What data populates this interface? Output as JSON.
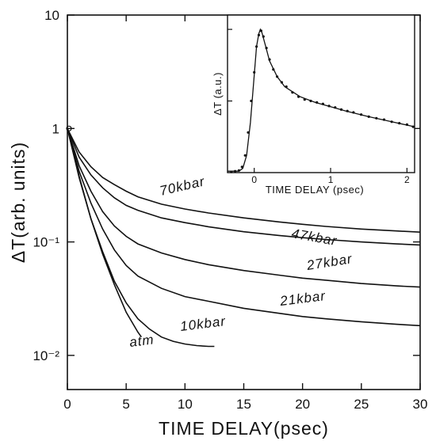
{
  "chart_data": [
    {
      "type": "line",
      "xlabel": "TIME DELAY(psec)",
      "ylabel": "ΔT(arb. units)",
      "xlim": [
        0,
        30
      ],
      "ylim": [
        0.005,
        10
      ],
      "yscale": "log",
      "x_ticks": [
        "0",
        "5",
        "10",
        "15",
        "20",
        "25",
        "30"
      ],
      "y_ticks": [
        {
          "value": 10,
          "label": "10"
        },
        {
          "value": 1,
          "label": "1"
        },
        {
          "value": 0.1,
          "label": "10⁻¹"
        },
        {
          "value": 0.01,
          "label": "10⁻²"
        }
      ],
      "grid": false,
      "series": [
        {
          "name": "70kbar",
          "x": [
            0,
            1,
            2,
            3,
            4,
            5,
            6,
            8,
            10,
            12,
            15,
            18,
            20,
            22,
            25,
            28,
            30
          ],
          "y": [
            1,
            0.62,
            0.46,
            0.37,
            0.32,
            0.28,
            0.25,
            0.215,
            0.195,
            0.18,
            0.163,
            0.15,
            0.143,
            0.137,
            0.13,
            0.125,
            0.122
          ]
        },
        {
          "name": "47kbar",
          "x": [
            0,
            1,
            2,
            3,
            4,
            5,
            6,
            8,
            10,
            12,
            15,
            18,
            20,
            22,
            25,
            28,
            30
          ],
          "y": [
            1,
            0.56,
            0.39,
            0.3,
            0.245,
            0.21,
            0.19,
            0.163,
            0.148,
            0.136,
            0.123,
            0.114,
            0.109,
            0.105,
            0.1,
            0.096,
            0.094
          ]
        },
        {
          "name": "27kbar",
          "x": [
            0,
            1,
            2,
            3,
            4,
            5,
            6,
            8,
            10,
            12,
            15,
            18,
            20,
            22,
            25,
            28,
            30
          ],
          "y": [
            1,
            0.47,
            0.28,
            0.185,
            0.138,
            0.112,
            0.096,
            0.08,
            0.07,
            0.063,
            0.056,
            0.051,
            0.048,
            0.046,
            0.043,
            0.041,
            0.04
          ]
        },
        {
          "name": "21kbar",
          "x": [
            0,
            1,
            2,
            3,
            4,
            5,
            6,
            8,
            10,
            12,
            15,
            18,
            20,
            22,
            25,
            28,
            30
          ],
          "y": [
            1,
            0.42,
            0.22,
            0.13,
            0.085,
            0.062,
            0.05,
            0.039,
            0.033,
            0.03,
            0.026,
            0.0235,
            0.022,
            0.021,
            0.0198,
            0.0188,
            0.0183
          ]
        },
        {
          "name": "10kbar",
          "x": [
            0,
            1,
            2,
            3,
            4,
            5,
            6,
            7,
            8,
            9,
            10,
            11,
            12,
            12.5
          ],
          "y": [
            1,
            0.37,
            0.16,
            0.082,
            0.045,
            0.029,
            0.021,
            0.017,
            0.0145,
            0.0133,
            0.0126,
            0.0122,
            0.012,
            0.012
          ]
        },
        {
          "name": "atm",
          "x": [
            0,
            1,
            2,
            3,
            4,
            5,
            6,
            6.3
          ],
          "y": [
            1,
            0.38,
            0.16,
            0.078,
            0.042,
            0.024,
            0.016,
            0.0145
          ]
        }
      ]
    },
    {
      "type": "line",
      "xlabel": "TIME DELAY (psec)",
      "ylabel": "ΔT (a.u.)",
      "xlim": [
        -0.35,
        2.1
      ],
      "ylim": [
        0,
        1.1
      ],
      "x_ticks": [
        "0",
        "1",
        "2"
      ],
      "grid": false,
      "fit": {
        "x": [
          -0.35,
          -0.2,
          -0.15,
          -0.1,
          -0.05,
          0,
          0.03,
          0.06,
          0.08,
          0.1,
          0.15,
          0.2,
          0.3,
          0.4,
          0.6,
          0.8,
          1.0,
          1.2,
          1.5,
          1.8,
          2.1
        ],
        "y": [
          0.01,
          0.01,
          0.03,
          0.12,
          0.35,
          0.68,
          0.88,
          0.97,
          1.0,
          0.98,
          0.88,
          0.78,
          0.67,
          0.6,
          0.53,
          0.49,
          0.46,
          0.43,
          0.39,
          0.355,
          0.32
        ]
      },
      "points": {
        "x": [
          -0.3,
          -0.25,
          -0.2,
          -0.16,
          -0.12,
          -0.08,
          -0.04,
          0,
          0.03,
          0.06,
          0.09,
          0.12,
          0.16,
          0.2,
          0.25,
          0.3,
          0.36,
          0.42,
          0.5,
          0.58,
          0.66,
          0.74,
          0.82,
          0.9,
          0.98,
          1.06,
          1.14,
          1.22,
          1.3,
          1.4,
          1.5,
          1.6,
          1.7,
          1.8,
          1.9,
          2.0,
          2.08
        ],
        "y": [
          0.005,
          0.01,
          0.015,
          0.04,
          0.12,
          0.28,
          0.5,
          0.7,
          0.88,
          0.96,
          0.99,
          0.95,
          0.87,
          0.79,
          0.72,
          0.67,
          0.63,
          0.6,
          0.56,
          0.53,
          0.51,
          0.5,
          0.49,
          0.48,
          0.465,
          0.455,
          0.44,
          0.43,
          0.42,
          0.405,
          0.39,
          0.38,
          0.37,
          0.355,
          0.345,
          0.335,
          0.32
        ]
      }
    }
  ]
}
